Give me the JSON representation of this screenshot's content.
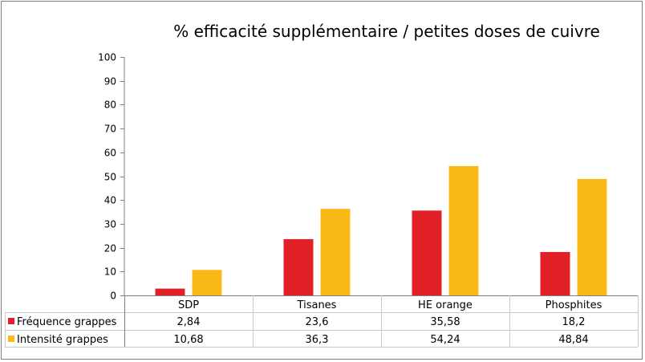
{
  "chart_data": {
    "type": "bar",
    "title": "% efficacité supplémentaire / petites doses de cuivre",
    "xlabel": "",
    "ylabel": "",
    "ylim": [
      0,
      100
    ],
    "yticks": [
      0,
      10,
      20,
      30,
      40,
      50,
      60,
      70,
      80,
      90,
      100
    ],
    "categories": [
      "SDP",
      "Tisanes",
      "HE orange",
      "Phosphites"
    ],
    "series": [
      {
        "name": "Fréquence grappes",
        "color": "#e11f26",
        "values": [
          2.84,
          23.6,
          35.58,
          18.2
        ],
        "labels": [
          "2,84",
          "23,6",
          "35,58",
          "18,2"
        ]
      },
      {
        "name": "Intensité grappes",
        "color": "#fbb917",
        "values": [
          10.68,
          36.3,
          54.24,
          48.84
        ],
        "labels": [
          "10,68",
          "36,3",
          "54,24",
          "48,84"
        ]
      }
    ],
    "grid": false,
    "legend": "data-table-left"
  }
}
